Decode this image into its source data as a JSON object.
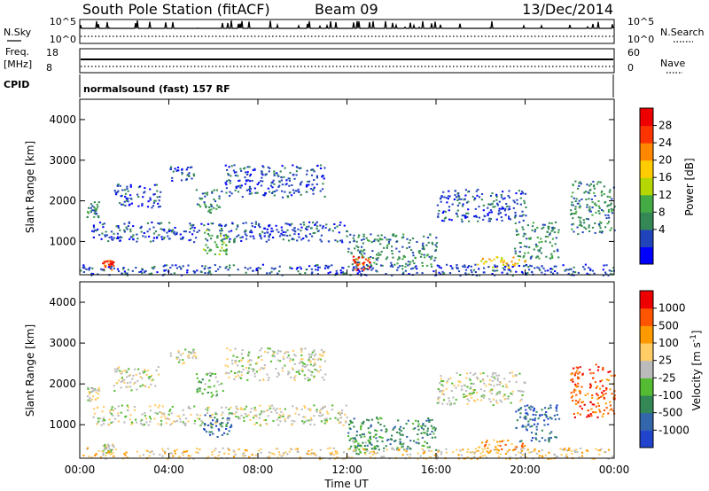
{
  "header": {
    "station": "South Pole Station (fitACF)",
    "beam": "Beam 09",
    "date": "13/Dec/2014"
  },
  "status_panels": {
    "nsky_label": "N.Sky",
    "nsky_ticks": [
      "10^5",
      "10^0"
    ],
    "nsearch_label": "N.Search",
    "nsearch_ticks": [
      "10^5",
      "10^0"
    ],
    "freq_label": "Freq.",
    "freq_unit": "[MHz]",
    "freq_ticks": [
      "18",
      "8"
    ],
    "nave_label": "Nave",
    "nave_ticks": [
      "60",
      "0"
    ],
    "cpid_label": "CPID",
    "cpid_value": "normalsound (fast) 157 RF"
  },
  "chart_data": [
    {
      "type": "heatmap",
      "name": "power",
      "ylabel": "Slant Range [km]",
      "ylim": [
        180,
        4500
      ],
      "yticks": [
        "1000",
        "2000",
        "3000",
        "4000"
      ],
      "xlim": [
        0,
        24
      ],
      "colorbar": {
        "label": "Power [dB]",
        "ticks": [
          "28",
          "24",
          "20",
          "16",
          "12",
          "8",
          "4"
        ],
        "colors": [
          "#0000ff",
          "#2244bb",
          "#338855",
          "#44aa44",
          "#b5d600",
          "#ffcc00",
          "#ff8800",
          "#ff3300",
          "#ee0000"
        ]
      },
      "echo_regions": [
        {
          "t0": 0.3,
          "t1": 0.9,
          "r0": 1600,
          "r1": 2000,
          "level": 2
        },
        {
          "t0": 1.5,
          "t1": 3.6,
          "r0": 1850,
          "r1": 2450,
          "level": 1
        },
        {
          "t0": 4.0,
          "t1": 5.2,
          "r0": 2500,
          "r1": 2900,
          "level": 1
        },
        {
          "t0": 5.2,
          "t1": 6.4,
          "r0": 1700,
          "r1": 2300,
          "level": 2
        },
        {
          "t0": 6.5,
          "t1": 11.0,
          "r0": 2100,
          "r1": 2900,
          "level": 1
        },
        {
          "t0": 0.5,
          "t1": 12.0,
          "r0": 1000,
          "r1": 1500,
          "level": 1
        },
        {
          "t0": 5.5,
          "t1": 6.8,
          "r0": 700,
          "r1": 1300,
          "level": 3
        },
        {
          "t0": 12.0,
          "t1": 16.0,
          "r0": 400,
          "r1": 1200,
          "level": 2
        },
        {
          "t0": 12.2,
          "t1": 13.0,
          "r0": 300,
          "r1": 650,
          "level": 7
        },
        {
          "t0": 16.0,
          "t1": 20.0,
          "r0": 1500,
          "r1": 2300,
          "level": 1
        },
        {
          "t0": 17.8,
          "t1": 20.0,
          "r0": 350,
          "r1": 650,
          "level": 5
        },
        {
          "t0": 19.5,
          "t1": 21.5,
          "r0": 600,
          "r1": 1500,
          "level": 2
        },
        {
          "t0": 22.0,
          "t1": 24.0,
          "r0": 1200,
          "r1": 2500,
          "level": 2
        },
        {
          "t0": 1.0,
          "t1": 1.5,
          "r0": 300,
          "r1": 550,
          "level": 7
        },
        {
          "t0": 0.0,
          "t1": 24.0,
          "r0": 180,
          "r1": 450,
          "level": 1
        }
      ]
    },
    {
      "type": "heatmap",
      "name": "velocity",
      "ylabel": "Slant Range [km]",
      "xlabel": "Time UT",
      "ylim": [
        180,
        4500
      ],
      "yticks": [
        "1000",
        "2000",
        "3000",
        "4000"
      ],
      "xlim": [
        0,
        24
      ],
      "xticks": [
        "00:00",
        "04:00",
        "08:00",
        "12:00",
        "16:00",
        "20:00",
        "00:00"
      ],
      "colorbar": {
        "label": "Velocity [m s",
        "label_sup": "-1",
        "label_end": "]",
        "ticks": [
          "1000",
          "500",
          "100",
          "25",
          "-25",
          "-100",
          "-500",
          "-1000"
        ],
        "colors": [
          "#2244cc",
          "#3366aa",
          "#338855",
          "#55bb33",
          "#bbbbbb",
          "#ffcc66",
          "#ff9900",
          "#ff5500",
          "#ee0000"
        ]
      },
      "echo_regions": [
        {
          "t0": 0.3,
          "t1": 0.9,
          "r0": 1600,
          "r1": 2000,
          "level": 4
        },
        {
          "t0": 1.5,
          "t1": 3.6,
          "r0": 1850,
          "r1": 2450,
          "level": 4
        },
        {
          "t0": 4.0,
          "t1": 5.2,
          "r0": 2500,
          "r1": 2900,
          "level": 4
        },
        {
          "t0": 5.2,
          "t1": 6.4,
          "r0": 1700,
          "r1": 2300,
          "level": 3
        },
        {
          "t0": 6.5,
          "t1": 11.0,
          "r0": 2100,
          "r1": 2900,
          "level": 4
        },
        {
          "t0": 0.5,
          "t1": 12.0,
          "r0": 1000,
          "r1": 1500,
          "level": 4
        },
        {
          "t0": 5.5,
          "t1": 6.8,
          "r0": 700,
          "r1": 1300,
          "level": 1
        },
        {
          "t0": 12.0,
          "t1": 16.0,
          "r0": 400,
          "r1": 1200,
          "level": 2
        },
        {
          "t0": 12.2,
          "t1": 13.0,
          "r0": 300,
          "r1": 650,
          "level": 3
        },
        {
          "t0": 16.0,
          "t1": 20.0,
          "r0": 1500,
          "r1": 2300,
          "level": 4
        },
        {
          "t0": 17.8,
          "t1": 20.0,
          "r0": 350,
          "r1": 650,
          "level": 6
        },
        {
          "t0": 19.5,
          "t1": 21.5,
          "r0": 600,
          "r1": 1500,
          "level": 1
        },
        {
          "t0": 22.0,
          "t1": 24.0,
          "r0": 1200,
          "r1": 2500,
          "level": 7
        },
        {
          "t0": 1.0,
          "t1": 1.5,
          "r0": 300,
          "r1": 550,
          "level": 4
        },
        {
          "t0": 0.0,
          "t1": 24.0,
          "r0": 180,
          "r1": 450,
          "level": 5
        }
      ]
    }
  ]
}
